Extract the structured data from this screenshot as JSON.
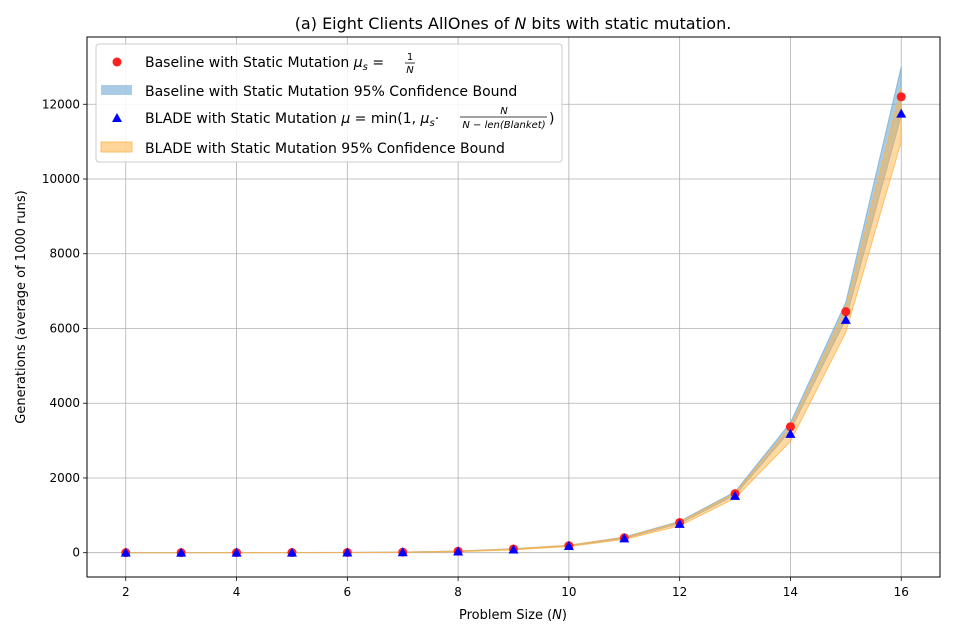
{
  "chart_data": {
    "type": "scatter",
    "title": {
      "prefix": "(a) Eight Clients AllOnes of ",
      "variable": "N",
      "suffix": " bits with static mutation."
    },
    "xlabel": {
      "prefix": "Problem Size (",
      "variable": "N",
      "suffix": ")"
    },
    "ylabel": "Generations (average of 1000 runs)",
    "xlim": [
      1.3,
      16.7
    ],
    "ylim": [
      -650,
      13800
    ],
    "xticks": [
      2,
      4,
      6,
      8,
      10,
      12,
      14,
      16
    ],
    "yticks": [
      0,
      2000,
      4000,
      6000,
      8000,
      10000,
      12000
    ],
    "grid": true,
    "legend_position": "upper-left",
    "x": [
      2,
      3,
      4,
      5,
      6,
      7,
      8,
      9,
      10,
      11,
      12,
      13,
      14,
      15,
      16
    ],
    "series": [
      {
        "kind": "points",
        "marker": "circle",
        "color": "#ff2020",
        "legend": {
          "text": "Baseline with Static Mutation ",
          "mu_symbol": "μ",
          "mu_subscript": "s",
          "eq": " = ",
          "frac_num": "1",
          "frac_den": "N"
        },
        "values": [
          2,
          2,
          3,
          4,
          6,
          15,
          40,
          100,
          190,
          400,
          810,
          1580,
          3370,
          6450,
          12200
        ]
      },
      {
        "kind": "band",
        "color": "#7bafd4",
        "legend": {
          "text": "Baseline with Static Mutation 95% Confidence Bound"
        },
        "lower": [
          0,
          0,
          1,
          2,
          4,
          12,
          35,
          92,
          180,
          380,
          780,
          1540,
          3270,
          6250,
          11700
        ],
        "upper": [
          4,
          4,
          5,
          6,
          8,
          18,
          45,
          108,
          200,
          420,
          840,
          1630,
          3480,
          6700,
          13000
        ]
      },
      {
        "kind": "points",
        "marker": "triangle",
        "color": "#0000ff",
        "legend": {
          "text": "BLADE with Static Mutation ",
          "mu_symbol": "μ",
          "eq": " = min(1, ",
          "mu_s_symbol": "μ",
          "mu_s_subscript": "s",
          "dot": "·",
          "frac_num": "N",
          "frac_den": "N − len(Blanket)",
          "close": ")"
        },
        "values": [
          1,
          1,
          2,
          3,
          4,
          12,
          32,
          85,
          180,
          385,
          770,
          1520,
          3180,
          6230,
          11750
        ]
      },
      {
        "kind": "band",
        "color": "#ffb347",
        "legend": {
          "text": "BLADE with Static Mutation 95% Confidence Bound"
        },
        "lower": [
          0,
          0,
          0,
          1,
          2,
          8,
          26,
          75,
          165,
          355,
          720,
          1460,
          2980,
          5900,
          11000
        ],
        "upper": [
          3,
          3,
          4,
          5,
          7,
          17,
          42,
          100,
          200,
          410,
          820,
          1600,
          3370,
          6550,
          12450
        ]
      }
    ]
  }
}
